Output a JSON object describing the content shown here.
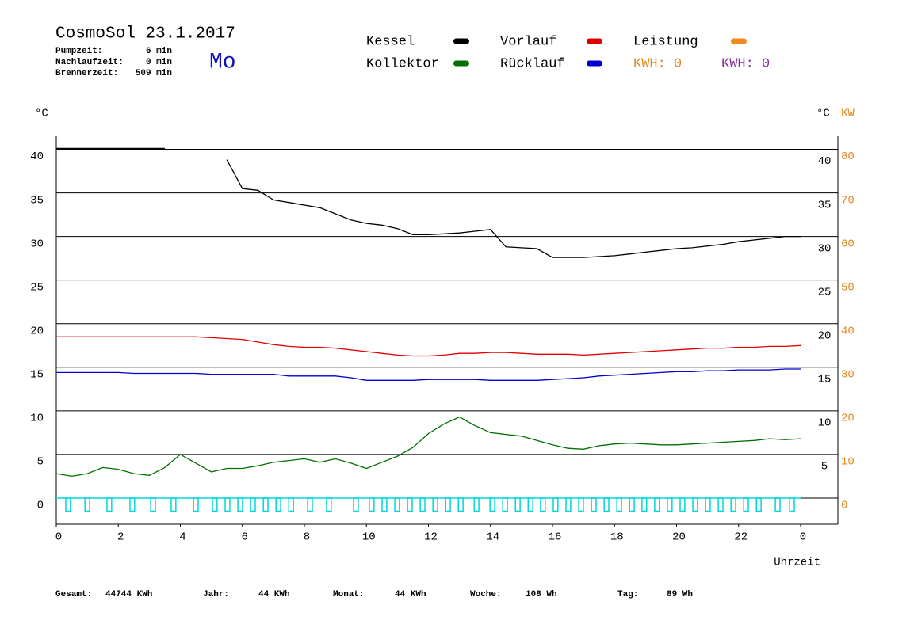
{
  "chart_data": {
    "type": "line",
    "title": "CosmoSol 23.1.2017",
    "day": "Mo",
    "stats": [
      {
        "label": "Pumpzeit:",
        "value": "6 min"
      },
      {
        "label": "Nachlaufzeit:",
        "value": "0 min"
      },
      {
        "label": "Brennerzeit:",
        "value": "509 min"
      }
    ],
    "y_unit_left": "°C",
    "y_unit_right": "°C",
    "y2_unit": "KW",
    "x_label": "Uhrzeit",
    "kwh_labels": [
      {
        "text": "KWH: 0",
        "color": "#e08a1e"
      },
      {
        "text": "KWH: 0",
        "color": "#8b2f9b"
      }
    ],
    "footer": [
      {
        "label": "Gesamt:",
        "value": "44744 KWh"
      },
      {
        "label": "Jahr:",
        "value": "44 KWh"
      },
      {
        "label": "Monat:",
        "value": "44 KWh"
      },
      {
        "label": "Woche:",
        "value": "108 Wh"
      },
      {
        "label": "Tag:",
        "value": "89 Wh"
      }
    ],
    "xlim": [
      0,
      24
    ],
    "xticks": [
      0,
      2,
      4,
      6,
      8,
      10,
      12,
      14,
      16,
      18,
      20,
      22,
      {
        "value": 24,
        "label": "0"
      }
    ],
    "ylim": [
      -3,
      41.5
    ],
    "yticks": [
      0,
      5,
      10,
      15,
      20,
      25,
      30,
      35,
      40
    ],
    "yticks_right": [
      5,
      10,
      15,
      20,
      25,
      30,
      35,
      40
    ],
    "y2lim": [
      -6,
      83
    ],
    "y2ticks": [
      0,
      10,
      20,
      30,
      40,
      50,
      60,
      70,
      80
    ],
    "y2_color": "#e08a1e",
    "grid": true,
    "x": [
      0,
      0.5,
      1,
      1.5,
      2,
      2.5,
      3,
      3.5,
      4,
      4.5,
      5,
      5.5,
      6,
      6.5,
      7,
      7.5,
      8,
      8.5,
      9,
      9.5,
      10,
      10.5,
      11,
      11.5,
      12,
      12.5,
      13,
      13.5,
      14,
      14.5,
      15,
      15.5,
      16,
      16.5,
      17,
      17.5,
      18,
      18.5,
      19,
      19.5,
      20,
      20.5,
      21,
      21.5,
      22,
      22.5,
      23,
      23.5,
      24
    ],
    "series": [
      {
        "name": "Kessel",
        "color": "#000000",
        "values": [
          40.1,
          40.1,
          40.1,
          40.1,
          40.1,
          40.1,
          40.1,
          40.1,
          null,
          null,
          null,
          38.8,
          35.5,
          35.3,
          34.2,
          33.9,
          33.6,
          33.3,
          32.6,
          31.9,
          31.5,
          31.3,
          30.9,
          30.2,
          30.2,
          30.3,
          30.4,
          30.6,
          30.8,
          28.8,
          28.7,
          28.6,
          27.6,
          27.6,
          27.6,
          27.7,
          27.8,
          28.0,
          28.2,
          28.4,
          28.6,
          28.7,
          28.9,
          29.1,
          29.4,
          29.6,
          29.8,
          30.0,
          30.0
        ]
      },
      {
        "name": "Vorlauf",
        "color": "#e00000",
        "values": [
          18.5,
          18.5,
          18.5,
          18.5,
          18.5,
          18.5,
          18.5,
          18.5,
          18.5,
          18.5,
          18.4,
          18.3,
          18.2,
          17.9,
          17.6,
          17.4,
          17.3,
          17.3,
          17.2,
          17.0,
          16.8,
          16.6,
          16.4,
          16.3,
          16.3,
          16.4,
          16.6,
          16.6,
          16.7,
          16.7,
          16.6,
          16.5,
          16.5,
          16.5,
          16.4,
          16.5,
          16.6,
          16.7,
          16.8,
          16.9,
          17.0,
          17.1,
          17.2,
          17.2,
          17.3,
          17.3,
          17.4,
          17.4,
          17.5
        ]
      },
      {
        "name": "Leistung",
        "color": "#f08a1e",
        "values": [
          null,
          null,
          null,
          null,
          null,
          null,
          null,
          null,
          null,
          null,
          null,
          null,
          null,
          null,
          null,
          null,
          null,
          null,
          null,
          null,
          null,
          null,
          null,
          null,
          null,
          null,
          null,
          null,
          null,
          null,
          null,
          null,
          null,
          null,
          null,
          null,
          null,
          null,
          null,
          null,
          null,
          null,
          null,
          null,
          null,
          null,
          null,
          null,
          null
        ]
      },
      {
        "name": "Kollektor",
        "color": "#007000",
        "values": [
          2.8,
          2.5,
          2.8,
          3.5,
          3.3,
          2.8,
          2.6,
          3.5,
          5.0,
          4.0,
          3.0,
          3.4,
          3.4,
          3.7,
          4.1,
          4.3,
          4.5,
          4.1,
          4.5,
          4.0,
          3.4,
          4.1,
          4.8,
          5.8,
          7.4,
          8.5,
          9.3,
          8.3,
          7.5,
          7.3,
          7.1,
          6.6,
          6.1,
          5.7,
          5.6,
          6.0,
          6.2,
          6.3,
          6.2,
          6.1,
          6.1,
          6.2,
          6.3,
          6.4,
          6.5,
          6.6,
          6.8,
          6.7,
          6.8
        ]
      },
      {
        "name": "Rücklauf",
        "color": "#0000d0",
        "values": [
          14.4,
          14.4,
          14.4,
          14.4,
          14.4,
          14.3,
          14.3,
          14.3,
          14.3,
          14.3,
          14.2,
          14.2,
          14.2,
          14.2,
          14.2,
          14.0,
          14.0,
          14.0,
          14.0,
          13.8,
          13.5,
          13.5,
          13.5,
          13.5,
          13.6,
          13.6,
          13.6,
          13.6,
          13.5,
          13.5,
          13.5,
          13.5,
          13.6,
          13.7,
          13.8,
          14.0,
          14.1,
          14.2,
          14.3,
          14.4,
          14.5,
          14.5,
          14.6,
          14.6,
          14.7,
          14.7,
          14.7,
          14.8,
          14.8
        ]
      }
    ],
    "pump": {
      "color": "#00d8d8",
      "level": -1.5,
      "width": 0.15,
      "x": [
        0.38,
        1.0,
        1.71,
        2.45,
        3.12,
        3.78,
        4.5,
        5.11,
        5.52,
        5.93,
        6.34,
        6.75,
        7.16,
        7.57,
        8.18,
        8.79,
        9.66,
        10.17,
        10.58,
        10.99,
        11.4,
        11.81,
        12.22,
        12.63,
        13.04,
        13.55,
        14.06,
        14.47,
        14.88,
        15.29,
        15.69,
        16.1,
        16.51,
        16.92,
        17.33,
        17.74,
        18.15,
        18.56,
        18.96,
        19.37,
        19.78,
        20.19,
        20.6,
        21.01,
        21.42,
        21.83,
        22.24,
        22.65,
        23.26,
        23.72
      ]
    }
  }
}
